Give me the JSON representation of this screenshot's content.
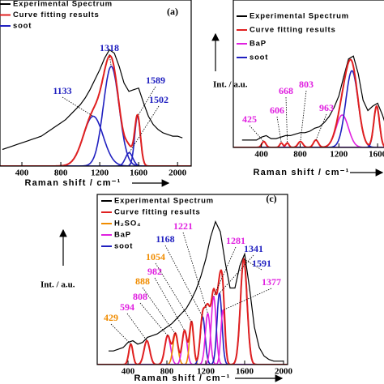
{
  "chart_data": [
    {
      "type": "line",
      "label": "(a)",
      "xlabel": "Raman shift / cm⁻¹",
      "xlim": [
        175,
        2140
      ],
      "xticks": [
        400,
        800,
        1200,
        1600,
        2000
      ],
      "ylim": [
        0,
        100
      ],
      "x": [
        200,
        250,
        300,
        350,
        400,
        450,
        500,
        550,
        600,
        650,
        700,
        750,
        800,
        850,
        900,
        950,
        1000,
        1050,
        1100,
        1150,
        1200,
        1250,
        1300,
        1350,
        1400,
        1450,
        1500,
        1550,
        1600,
        1650,
        1700,
        1750,
        1800,
        1850,
        1900,
        1950,
        2000,
        2050
      ],
      "series": [
        {
          "name": "Experimental Spectrum",
          "color": "#000000",
          "values": [
            10,
            11,
            12,
            13,
            14,
            15,
            16,
            17,
            18,
            20,
            22,
            24,
            26,
            28,
            31,
            34,
            37,
            41,
            46,
            52,
            58,
            65,
            70,
            68,
            60,
            50,
            45,
            46,
            47,
            38,
            30,
            25,
            22,
            20,
            19,
            18,
            18,
            17
          ]
        },
        {
          "name": "Curve fitting results",
          "color": "#e02020"
        },
        {
          "name": "soot",
          "color": "#2020c0"
        }
      ],
      "peaks": [
        {
          "center": 1133,
          "height": 30,
          "width": 240,
          "group": 2
        },
        {
          "center": 1318,
          "height": 60,
          "width": 190,
          "group": 2
        },
        {
          "center": 1589,
          "height": 30,
          "width": 70,
          "group": 2
        },
        {
          "center": 1502,
          "height": 8,
          "width": 90,
          "group": 2
        }
      ]
    },
    {
      "type": "line",
      "ylabel": "Int. / a.u.",
      "xlabel": "Raman shift / cm⁻¹",
      "xlim": [
        110,
        1800
      ],
      "xticks": [
        400,
        800,
        1200,
        1600
      ],
      "ylim": [
        0,
        100
      ],
      "x": [
        200,
        250,
        300,
        350,
        400,
        450,
        500,
        550,
        600,
        650,
        700,
        750,
        800,
        850,
        900,
        950,
        1000,
        1050,
        1100,
        1150,
        1200,
        1250,
        1300,
        1350,
        1400,
        1450,
        1500,
        1550,
        1600,
        1650,
        1700,
        1750
      ],
      "series": [
        {
          "name": "Experimental Spectrum",
          "color": "#000000",
          "values": [
            5,
            5,
            5,
            5,
            7,
            8,
            6,
            6,
            7,
            8,
            8,
            9,
            10,
            10,
            11,
            13,
            14,
            17,
            21,
            27,
            35,
            48,
            60,
            62,
            50,
            32,
            25,
            28,
            30,
            22,
            12,
            6
          ]
        },
        {
          "name": "Curve fitting results",
          "color": "#e02020"
        },
        {
          "name": "BaP",
          "color": "#e020e0"
        },
        {
          "name": "soot",
          "color": "#2020c0"
        }
      ],
      "peaks": [
        {
          "center": 425,
          "height": 4,
          "width": 50,
          "group": 2
        },
        {
          "center": 606,
          "height": 3,
          "width": 40,
          "group": 2
        },
        {
          "center": 668,
          "height": 3,
          "width": 40,
          "group": 2
        },
        {
          "center": 803,
          "height": 4,
          "width": 60,
          "group": 2
        },
        {
          "center": 963,
          "height": 5,
          "width": 60,
          "group": 2
        },
        {
          "center": 1235,
          "height": 22,
          "width": 150,
          "group": 2,
          "labeled": false
        },
        {
          "center": 1335,
          "height": 52,
          "width": 150,
          "group": 3,
          "labeled": false
        },
        {
          "center": 1590,
          "height": 28,
          "width": 70,
          "group": 3,
          "labeled": false
        }
      ]
    },
    {
      "type": "line",
      "label": "(c)",
      "ylabel": "Int. / a.u.",
      "xlabel": "Raman shift / cm⁻¹",
      "xlim": [
        83,
        2042
      ],
      "xticks": [
        400,
        800,
        1200,
        1600,
        2000
      ],
      "ylim": [
        0,
        100
      ],
      "x": [
        200,
        250,
        300,
        350,
        400,
        450,
        500,
        550,
        600,
        650,
        700,
        750,
        800,
        850,
        900,
        950,
        1000,
        1050,
        1100,
        1150,
        1200,
        1250,
        1300,
        1350,
        1400,
        1450,
        1500,
        1550,
        1600,
        1650,
        1700,
        1750,
        1800,
        1850,
        1900,
        1950,
        2000
      ],
      "series": [
        {
          "name": "Experimental Spectrum",
          "color": "#000000",
          "values": [
            8,
            8,
            9,
            10,
            13,
            14,
            12,
            13,
            16,
            17,
            18,
            20,
            22,
            24,
            27,
            30,
            33,
            38,
            44,
            52,
            62,
            75,
            84,
            78,
            60,
            45,
            45,
            58,
            65,
            45,
            22,
            10,
            5,
            3,
            2,
            2,
            2
          ]
        },
        {
          "name": "Curve fitting results",
          "color": "#e02020"
        },
        {
          "name": "H₂SO₄",
          "color": "#f08c00"
        },
        {
          "name": "BaP",
          "color": "#e020e0"
        },
        {
          "name": "soot",
          "color": "#2020c0"
        }
      ],
      "peaks": [
        {
          "center": 429,
          "height": 12,
          "width": 50,
          "group": 2
        },
        {
          "center": 594,
          "height": 14,
          "width": 70,
          "group": 3
        },
        {
          "center": 808,
          "height": 17,
          "width": 70,
          "group": 3
        },
        {
          "center": 888,
          "height": 18,
          "width": 60,
          "group": 2
        },
        {
          "center": 982,
          "height": 20,
          "width": 60,
          "group": 3
        },
        {
          "center": 1054,
          "height": 25,
          "width": 50,
          "group": 2
        },
        {
          "center": 1168,
          "height": 28,
          "width": 60,
          "group": 4
        },
        {
          "center": 1221,
          "height": 30,
          "width": 60,
          "group": 3
        },
        {
          "center": 1281,
          "height": 40,
          "width": 60,
          "group": 3
        },
        {
          "center": 1341,
          "height": 42,
          "width": 60,
          "group": 4
        },
        {
          "center": 1591,
          "height": 62,
          "width": 80,
          "group": 4
        },
        {
          "center": 1377,
          "height": 32,
          "width": 50,
          "group": 3
        }
      ]
    }
  ]
}
